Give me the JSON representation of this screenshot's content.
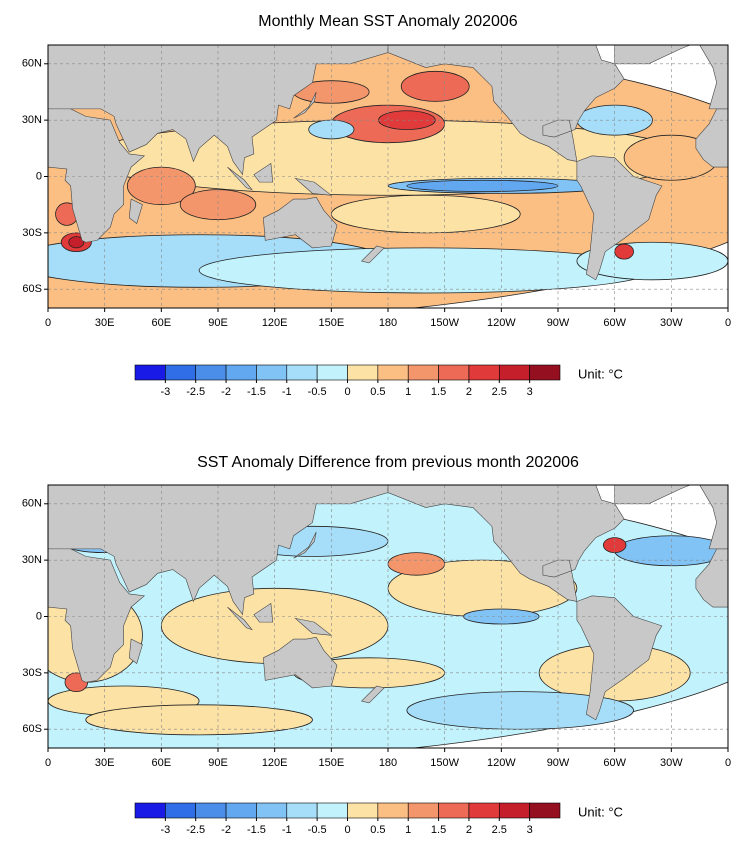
{
  "maps": [
    {
      "title": "Monthly Mean SST Anomaly 202006",
      "lat_labels": [
        "60N",
        "30N",
        "0",
        "30S",
        "60S"
      ],
      "lon_labels": [
        "0",
        "30E",
        "60E",
        "90E",
        "120E",
        "150E",
        "180",
        "150W",
        "120W",
        "90W",
        "60W",
        "30W",
        "0"
      ],
      "colorbar": {
        "ticks": [
          -3,
          -2.5,
          -2,
          -1.5,
          -1,
          -0.5,
          0,
          0.5,
          1,
          1.5,
          2,
          2.5,
          3
        ],
        "colors": [
          "#1a1ae6",
          "#2f6ee6",
          "#4a8eea",
          "#62a8f0",
          "#82c3f6",
          "#a6defa",
          "#c2f2fc",
          "#fde2a6",
          "#fbbf84",
          "#f4966c",
          "#ec6a56",
          "#e03a3a",
          "#c41f2a",
          "#941020"
        ],
        "unit_label": "Unit: °C"
      }
    },
    {
      "title": "SST Anomaly Difference from previous month 202006",
      "lat_labels": [
        "60N",
        "30N",
        "0",
        "30S",
        "60S"
      ],
      "lon_labels": [
        "0",
        "30E",
        "60E",
        "90E",
        "120E",
        "150E",
        "180",
        "150W",
        "120W",
        "90W",
        "60W",
        "30W",
        "0"
      ],
      "colorbar": {
        "ticks": [
          -3,
          -2.5,
          -2,
          -1.5,
          -1,
          -0.5,
          0,
          0.5,
          1,
          1.5,
          2,
          2.5,
          3
        ],
        "colors": [
          "#1a1ae6",
          "#2f6ee6",
          "#4a8eea",
          "#62a8f0",
          "#82c3f6",
          "#a6defa",
          "#c2f2fc",
          "#fde2a6",
          "#fbbf84",
          "#f4966c",
          "#ec6a56",
          "#e03a3a",
          "#c41f2a",
          "#941020"
        ],
        "unit_label": "Unit: °C"
      }
    }
  ]
}
